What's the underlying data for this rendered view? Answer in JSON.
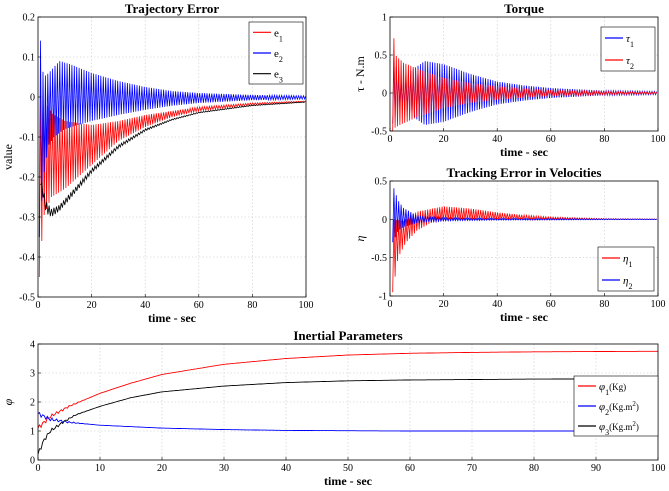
{
  "chart_data": [
    {
      "id": "trajectory",
      "type": "line",
      "title": "Trajectory Error",
      "xlabel": "time - sec",
      "ylabel": "value",
      "xlim": [
        0,
        100
      ],
      "ylim": [
        -0.5,
        0.2
      ],
      "xticks": [
        0,
        20,
        40,
        60,
        80,
        100
      ],
      "yticks": [
        -0.5,
        -0.4,
        -0.3,
        -0.2,
        -0.1,
        0,
        0.1,
        0.2
      ],
      "xtick_labels": [
        "0",
        "20",
        "40",
        "60",
        "80",
        "100"
      ],
      "ytick_labels": [
        "-0.5",
        "-0.4",
        "-0.3",
        "-0.2",
        "-0.1",
        "0",
        "0.1",
        "0.2"
      ],
      "grid": true,
      "legend": "top-right",
      "series": [
        {
          "name": "e",
          "sub": "1",
          "color": "#ff0000",
          "style": "band",
          "upper": [
            [
              0.5,
              0.02
            ],
            [
              5,
              -0.04
            ],
            [
              10,
              -0.06
            ],
            [
              20,
              -0.07
            ],
            [
              30,
              -0.06
            ],
            [
              40,
              -0.045
            ],
            [
              50,
              -0.035
            ],
            [
              60,
              -0.025
            ],
            [
              80,
              -0.015
            ],
            [
              100,
              -0.01
            ]
          ],
          "lower": [
            [
              0.5,
              -0.45
            ],
            [
              2,
              -0.3
            ],
            [
              5,
              -0.25
            ],
            [
              10,
              -0.23
            ],
            [
              20,
              -0.17
            ],
            [
              30,
              -0.11
            ],
            [
              40,
              -0.075
            ],
            [
              50,
              -0.05
            ],
            [
              60,
              -0.035
            ],
            [
              80,
              -0.02
            ],
            [
              100,
              -0.012
            ]
          ]
        },
        {
          "name": "e",
          "sub": "2",
          "color": "#0000ff",
          "style": "band",
          "upper": [
            [
              0.5,
              0.18
            ],
            [
              2,
              0.05
            ],
            [
              4,
              0.06
            ],
            [
              8,
              0.09
            ],
            [
              12,
              0.082
            ],
            [
              20,
              0.06
            ],
            [
              30,
              0.04
            ],
            [
              40,
              0.025
            ],
            [
              50,
              0.015
            ],
            [
              60,
              0.01
            ],
            [
              80,
              0.005
            ],
            [
              100,
              0.003
            ]
          ],
          "lower": [
            [
              0.5,
              -0.35
            ],
            [
              2,
              -0.2
            ],
            [
              4,
              -0.12
            ],
            [
              6,
              -0.1
            ],
            [
              10,
              -0.08
            ],
            [
              20,
              -0.06
            ],
            [
              30,
              -0.045
            ],
            [
              40,
              -0.032
            ],
            [
              50,
              -0.022
            ],
            [
              60,
              -0.015
            ],
            [
              80,
              -0.008
            ],
            [
              100,
              -0.005
            ]
          ]
        },
        {
          "name": "e",
          "sub": "3",
          "color": "#000000",
          "style": "band",
          "upper": [
            [
              1,
              -0.2
            ],
            [
              3,
              -0.26
            ],
            [
              5,
              -0.28
            ],
            [
              8,
              -0.27
            ],
            [
              12,
              -0.24
            ],
            [
              20,
              -0.18
            ],
            [
              30,
              -0.12
            ],
            [
              40,
              -0.08
            ],
            [
              50,
              -0.055
            ],
            [
              60,
              -0.038
            ],
            [
              80,
              -0.02
            ],
            [
              100,
              -0.012
            ]
          ],
          "lower": [
            [
              1,
              -0.22
            ],
            [
              3,
              -0.29
            ],
            [
              5,
              -0.3
            ],
            [
              8,
              -0.285
            ],
            [
              12,
              -0.255
            ],
            [
              20,
              -0.19
            ],
            [
              30,
              -0.128
            ],
            [
              40,
              -0.085
            ],
            [
              50,
              -0.058
            ],
            [
              60,
              -0.04
            ],
            [
              80,
              -0.022
            ],
            [
              100,
              -0.013
            ]
          ]
        }
      ]
    },
    {
      "id": "torque",
      "type": "line",
      "title": "Torque",
      "xlabel": "time - sec",
      "ylabel": "τ - N.m",
      "xlim": [
        0,
        100
      ],
      "ylim": [
        -0.5,
        1
      ],
      "xticks": [
        0,
        20,
        40,
        60,
        80,
        100
      ],
      "yticks": [
        -0.5,
        0,
        0.5,
        1
      ],
      "xtick_labels": [
        "0",
        "20",
        "40",
        "60",
        "80",
        "100"
      ],
      "ytick_labels": [
        "-0.5",
        "0",
        "0.5",
        "1"
      ],
      "grid": true,
      "legend": "top-right",
      "series": [
        {
          "name": "τ",
          "sub": "1",
          "color": "#0000ff",
          "style": "band",
          "upper": [
            [
              1,
              0.5
            ],
            [
              4,
              0.15
            ],
            [
              8,
              0.3
            ],
            [
              13,
              0.42
            ],
            [
              20,
              0.38
            ],
            [
              30,
              0.25
            ],
            [
              40,
              0.15
            ],
            [
              50,
              0.1
            ],
            [
              60,
              0.065
            ],
            [
              80,
              0.03
            ],
            [
              100,
              0.02
            ]
          ],
          "lower": [
            [
              1,
              -0.4
            ],
            [
              4,
              -0.15
            ],
            [
              8,
              -0.3
            ],
            [
              13,
              -0.42
            ],
            [
              20,
              -0.38
            ],
            [
              30,
              -0.25
            ],
            [
              40,
              -0.15
            ],
            [
              50,
              -0.1
            ],
            [
              60,
              -0.065
            ],
            [
              80,
              -0.03
            ],
            [
              100,
              -0.02
            ]
          ]
        },
        {
          "name": "τ",
          "sub": "2",
          "color": "#ff0000",
          "style": "band",
          "upper": [
            [
              1,
              0.9
            ],
            [
              2,
              0.5
            ],
            [
              5,
              0.4
            ],
            [
              10,
              0.32
            ],
            [
              20,
              0.2
            ],
            [
              30,
              0.13
            ],
            [
              40,
              0.09
            ],
            [
              50,
              0.06
            ],
            [
              60,
              0.04
            ],
            [
              80,
              0.02
            ],
            [
              100,
              0.01
            ]
          ],
          "lower": [
            [
              1,
              -0.5
            ],
            [
              2,
              -0.45
            ],
            [
              5,
              -0.4
            ],
            [
              10,
              -0.32
            ],
            [
              20,
              -0.2
            ],
            [
              30,
              -0.13
            ],
            [
              40,
              -0.09
            ],
            [
              50,
              -0.06
            ],
            [
              60,
              -0.04
            ],
            [
              80,
              -0.02
            ],
            [
              100,
              -0.01
            ]
          ]
        }
      ]
    },
    {
      "id": "velocity",
      "type": "line",
      "title": "Tracking Error in Velocities",
      "xlabel": "time - sec",
      "ylabel": "η",
      "xlim": [
        0,
        100
      ],
      "ylim": [
        -1,
        0.5
      ],
      "xticks": [
        0,
        20,
        40,
        60,
        80,
        100
      ],
      "yticks": [
        -1,
        -0.5,
        0,
        0.5
      ],
      "xtick_labels": [
        "0",
        "20",
        "40",
        "60",
        "80",
        "100"
      ],
      "ytick_labels": [
        "-1",
        "-0.5",
        "0",
        "0.5"
      ],
      "grid": true,
      "legend": "bottom-right",
      "series": [
        {
          "name": "η",
          "sub": "1",
          "color": "#ff0000",
          "style": "band",
          "upper": [
            [
              1,
              0
            ],
            [
              5,
              -0.02
            ],
            [
              10,
              0.1
            ],
            [
              20,
              0.17
            ],
            [
              30,
              0.14
            ],
            [
              40,
              0.09
            ],
            [
              50,
              0.055
            ],
            [
              60,
              0.03
            ],
            [
              80,
              0.01
            ],
            [
              100,
              0.005
            ]
          ],
          "lower": [
            [
              1,
              -0.95
            ],
            [
              3,
              -0.5
            ],
            [
              6,
              -0.3
            ],
            [
              10,
              -0.15
            ],
            [
              15,
              -0.05
            ],
            [
              20,
              -0.02
            ],
            [
              30,
              -0.01
            ],
            [
              50,
              -0.005
            ],
            [
              100,
              -0.002
            ]
          ]
        },
        {
          "name": "η",
          "sub": "2",
          "color": "#0000ff",
          "style": "band",
          "upper": [
            [
              1,
              0.45
            ],
            [
              3,
              0.25
            ],
            [
              5,
              0.15
            ],
            [
              10,
              0.05
            ],
            [
              20,
              0.02
            ],
            [
              40,
              0.01
            ],
            [
              100,
              0.003
            ]
          ],
          "lower": [
            [
              1,
              -0.3
            ],
            [
              3,
              -0.15
            ],
            [
              5,
              -0.1
            ],
            [
              10,
              -0.05
            ],
            [
              20,
              -0.02
            ],
            [
              40,
              -0.01
            ],
            [
              100,
              -0.003
            ]
          ]
        }
      ]
    },
    {
      "id": "inertial",
      "type": "line",
      "title": "Inertial Parameters",
      "xlabel": "time - sec",
      "ylabel": "φ",
      "xlim": [
        0,
        100
      ],
      "ylim": [
        0,
        4
      ],
      "xticks": [
        0,
        10,
        20,
        30,
        40,
        50,
        60,
        70,
        80,
        90,
        100
      ],
      "yticks": [
        0,
        1,
        2,
        3,
        4
      ],
      "xtick_labels": [
        "0",
        "10",
        "20",
        "30",
        "40",
        "50",
        "60",
        "70",
        "80",
        "90",
        "100"
      ],
      "ytick_labels": [
        "0",
        "1",
        "2",
        "3",
        "4"
      ],
      "grid": true,
      "legend": "right",
      "series": [
        {
          "name": "φ",
          "sub": "1",
          "suffix": "(Kg)",
          "color": "#ff0000",
          "style": "line",
          "points": [
            [
              0,
              1.1
            ],
            [
              2,
              1.5
            ],
            [
              5,
              1.85
            ],
            [
              10,
              2.3
            ],
            [
              15,
              2.65
            ],
            [
              20,
              2.95
            ],
            [
              30,
              3.3
            ],
            [
              40,
              3.5
            ],
            [
              50,
              3.62
            ],
            [
              60,
              3.68
            ],
            [
              70,
              3.71
            ],
            [
              80,
              3.73
            ],
            [
              90,
              3.74
            ],
            [
              100,
              3.75
            ]
          ]
        },
        {
          "name": "φ",
          "sub": "2",
          "suffix": "(Kg.m",
          "sup": "2",
          "tail": ")",
          "color": "#0000ff",
          "style": "line",
          "points": [
            [
              0,
              1.6
            ],
            [
              2,
              1.4
            ],
            [
              5,
              1.3
            ],
            [
              10,
              1.2
            ],
            [
              20,
              1.1
            ],
            [
              30,
              1.05
            ],
            [
              40,
              1.02
            ],
            [
              60,
              1.0
            ],
            [
              80,
              1.0
            ],
            [
              100,
              1.0
            ]
          ]
        },
        {
          "name": "φ",
          "sub": "3",
          "suffix": "(Kg.m",
          "sup": "2",
          "tail": ")",
          "color": "#000000",
          "style": "line",
          "points": [
            [
              0,
              0.2
            ],
            [
              1,
              0.7
            ],
            [
              2,
              1.0
            ],
            [
              4,
              1.3
            ],
            [
              6,
              1.55
            ],
            [
              10,
              1.85
            ],
            [
              15,
              2.15
            ],
            [
              20,
              2.35
            ],
            [
              30,
              2.55
            ],
            [
              40,
              2.67
            ],
            [
              50,
              2.73
            ],
            [
              60,
              2.76
            ],
            [
              80,
              2.79
            ],
            [
              100,
              2.8
            ]
          ]
        }
      ]
    }
  ]
}
